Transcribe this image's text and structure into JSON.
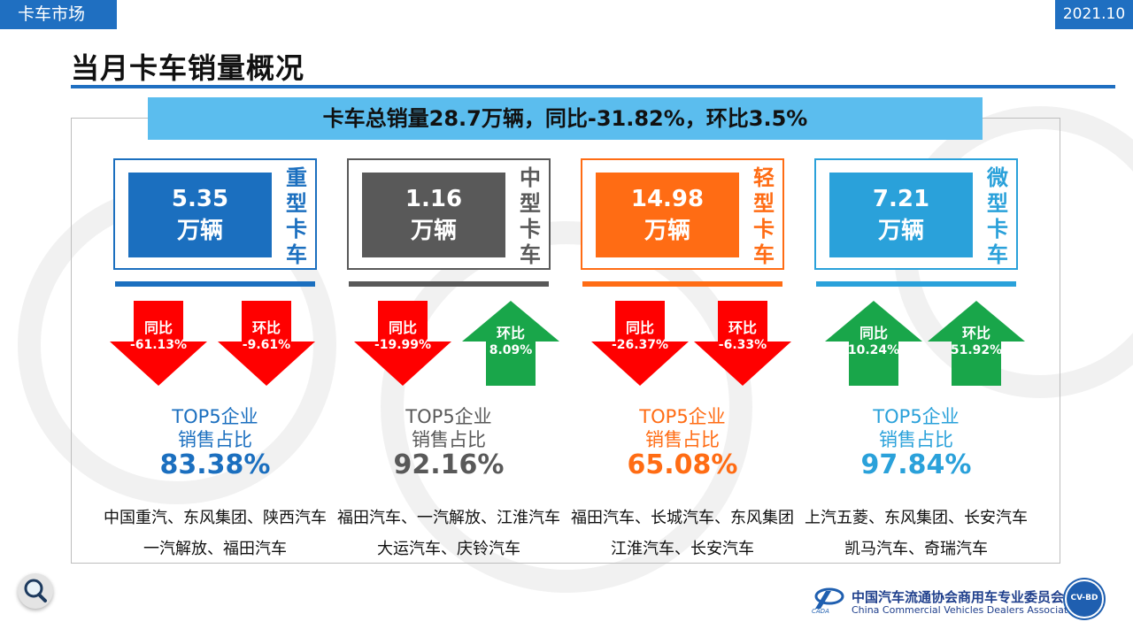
{
  "header": {
    "section_tag": "卡车市场",
    "date": "2021.10"
  },
  "page": {
    "title": "当月卡车销量概况"
  },
  "summary_banner": "卡车总销量28.7万辆，同比-31.82%，环比3.5%",
  "colors": {
    "heavy": "#1b6fbf",
    "medium": "#595959",
    "light": "#ff6c14",
    "mini": "#2aa1da",
    "down_arrow": "#ff0000",
    "up_arrow": "#19a64a",
    "brand_blue": "#1f6fc1"
  },
  "categories": [
    {
      "key": "heavy",
      "label": "重型卡车",
      "value": "5.35",
      "unit": "万辆",
      "yoy": {
        "label": "同比",
        "value": "-61.13%",
        "direction": "down"
      },
      "mom": {
        "label": "环比",
        "value": "-9.61%",
        "direction": "down"
      },
      "top5_title_line1": "TOP5企业",
      "top5_title_line2": "销售占比",
      "top5_share": "83.38%",
      "firms_line1": "中国重汽、东风集团、陕西汽车",
      "firms_line2": "一汽解放、福田汽车"
    },
    {
      "key": "medium",
      "label": "中型卡车",
      "value": "1.16",
      "unit": "万辆",
      "yoy": {
        "label": "同比",
        "value": "-19.99%",
        "direction": "down"
      },
      "mom": {
        "label": "环比",
        "value": "8.09%",
        "direction": "up"
      },
      "top5_title_line1": "TOP5企业",
      "top5_title_line2": "销售占比",
      "top5_share": "92.16%",
      "firms_line1": "福田汽车、一汽解放、江淮汽车",
      "firms_line2": "大运汽车、庆铃汽车"
    },
    {
      "key": "light",
      "label": "轻型卡车",
      "value": "14.98",
      "unit": "万辆",
      "yoy": {
        "label": "同比",
        "value": "-26.37%",
        "direction": "down"
      },
      "mom": {
        "label": "环比",
        "value": "-6.33%",
        "direction": "down"
      },
      "top5_title_line1": "TOP5企业",
      "top5_title_line2": "销售占比",
      "top5_share": "65.08%",
      "firms_line1": "福田汽车、长城汽车、东风集团",
      "firms_line2": "江淮汽车、长安汽车"
    },
    {
      "key": "mini",
      "label": "微型卡车",
      "value": "7.21",
      "unit": "万辆",
      "yoy": {
        "label": "同比",
        "value": "10.24%",
        "direction": "up"
      },
      "mom": {
        "label": "环比",
        "value": "51.92%",
        "direction": "up"
      },
      "top5_title_line1": "TOP5企业",
      "top5_title_line2": "销售占比",
      "top5_share": "97.84%",
      "firms_line1": "上汽五菱、东风集团、长安汽车",
      "firms_line2": "凯马汽车、奇瑞汽车"
    }
  ],
  "footer": {
    "association_cn": "中国汽车流通协会商用车专业委员会",
    "association_en": "China Commercial Vehicles Dealers Association",
    "badge_text": "CV-BD",
    "icons": [
      "magnifier-icon",
      "association-logo-icon",
      "cvbd-badge-icon"
    ]
  }
}
